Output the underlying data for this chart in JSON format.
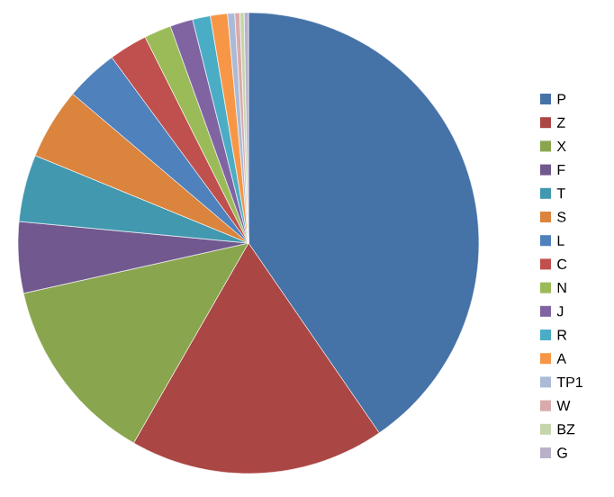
{
  "chart_data": {
    "type": "pie",
    "categories": [
      "P",
      "Z",
      "X",
      "F",
      "T",
      "S",
      "L",
      "C",
      "N",
      "J",
      "R",
      "A",
      "TP1",
      "W",
      "BZ",
      "G"
    ],
    "values": [
      40.4,
      17.9,
      13.2,
      5.0,
      4.7,
      5.0,
      3.7,
      2.7,
      1.9,
      1.6,
      1.25,
      1.2,
      0.5,
      0.35,
      0.3,
      0.3
    ],
    "colors": [
      "#4572A7",
      "#AA4643",
      "#89A54E",
      "#71588F",
      "#4198AF",
      "#DB843D",
      "#4F81BD",
      "#C0504D",
      "#9BBB59",
      "#8064A2",
      "#4BACC6",
      "#F79646",
      "#AABAD7",
      "#D9AAA9",
      "#C6D6AC",
      "#BAB0C9"
    ],
    "legend": "right"
  }
}
